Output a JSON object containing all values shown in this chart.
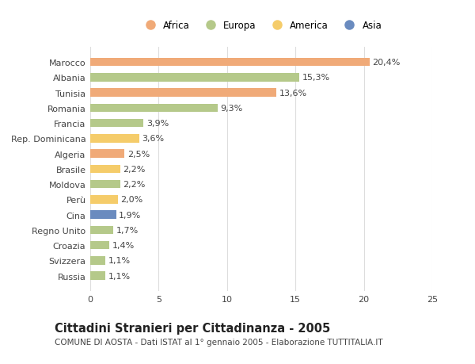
{
  "countries": [
    "Russia",
    "Svizzera",
    "Croazia",
    "Regno Unito",
    "Cina",
    "Perù",
    "Moldova",
    "Brasile",
    "Algeria",
    "Rep. Dominicana",
    "Francia",
    "Romania",
    "Tunisia",
    "Albania",
    "Marocco"
  ],
  "values": [
    1.1,
    1.1,
    1.4,
    1.7,
    1.9,
    2.0,
    2.2,
    2.2,
    2.5,
    3.6,
    3.9,
    9.3,
    13.6,
    15.3,
    20.4
  ],
  "labels": [
    "1,1%",
    "1,1%",
    "1,4%",
    "1,7%",
    "1,9%",
    "2,0%",
    "2,2%",
    "2,2%",
    "2,5%",
    "3,6%",
    "3,9%",
    "9,3%",
    "13,6%",
    "15,3%",
    "20,4%"
  ],
  "colors": [
    "#b5c98a",
    "#b5c98a",
    "#b5c98a",
    "#b5c98a",
    "#6a8bbf",
    "#f5cc6a",
    "#b5c98a",
    "#f5cc6a",
    "#f0aa78",
    "#f5cc6a",
    "#b5c98a",
    "#b5c98a",
    "#f0aa78",
    "#b5c98a",
    "#f0aa78"
  ],
  "legend": [
    {
      "label": "Africa",
      "color": "#f0aa78"
    },
    {
      "label": "Europa",
      "color": "#b5c98a"
    },
    {
      "label": "America",
      "color": "#f5cc6a"
    },
    {
      "label": "Asia",
      "color": "#6a8bbf"
    }
  ],
  "xlim": [
    0,
    25
  ],
  "xticks": [
    0,
    5,
    10,
    15,
    20,
    25
  ],
  "title": "Cittadini Stranieri per Cittadinanza - 2005",
  "subtitle": "COMUNE DI AOSTA - Dati ISTAT al 1° gennaio 2005 - Elaborazione TUTTITALIA.IT",
  "background_color": "#ffffff",
  "bar_height": 0.55,
  "grid_color": "#dddddd",
  "text_color": "#444444",
  "label_fontsize": 8,
  "ytick_fontsize": 8,
  "xtick_fontsize": 8,
  "title_fontsize": 10.5,
  "subtitle_fontsize": 7.5
}
